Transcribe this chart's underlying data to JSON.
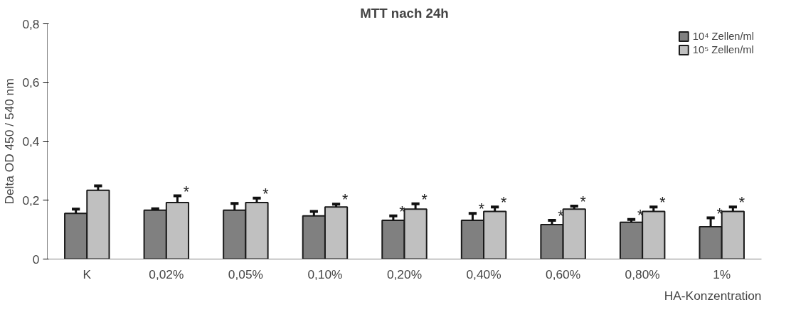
{
  "chart_data": {
    "type": "bar",
    "title": "MTT nach 24h",
    "xlabel": "HA-Konzentration",
    "ylabel": "Delta OD 450 / 540 nm",
    "categories": [
      "K",
      "0,02%",
      "0,05%",
      "0,10%",
      "0,20%",
      "0,40%",
      "0,60%",
      "0,80%",
      "1%"
    ],
    "series": [
      {
        "name": "10⁴ Zellen/ml",
        "color": "#808080",
        "values": [
          0.155,
          0.166,
          0.166,
          0.147,
          0.132,
          0.132,
          0.117,
          0.125,
          0.11
        ],
        "errors": [
          0.015,
          0.005,
          0.023,
          0.015,
          0.015,
          0.023,
          0.015,
          0.01,
          0.03
        ]
      },
      {
        "name": "10⁵ Zellen/ml",
        "color": "#c0c0c0",
        "values": [
          0.234,
          0.192,
          0.192,
          0.177,
          0.17,
          0.162,
          0.17,
          0.162,
          0.162
        ],
        "errors": [
          0.015,
          0.023,
          0.015,
          0.01,
          0.018,
          0.015,
          0.01,
          0.015,
          0.015
        ]
      }
    ],
    "ylim": [
      0,
      0.8
    ],
    "yticks": [
      0,
      {
        "value": 0.2,
        "label": "0,2"
      },
      {
        "value": 0.4,
        "label": "0,4"
      },
      {
        "value": 0.6,
        "label": "0,6"
      },
      {
        "value": 0.8,
        "label": "0,8"
      }
    ],
    "legend": "top right",
    "grid": false,
    "annotations": [
      {
        "text": "*",
        "x": "0,02%",
        "y": 0.192
      },
      {
        "text": "*",
        "x": "0,05%",
        "y": 0.192
      },
      {
        "text": "*",
        "x": "0,10%",
        "y": 0.177
      },
      {
        "text": "*",
        "x": "0,20%",
        "y": 0.132
      },
      {
        "text": "*",
        "x": "0,20%",
        "y": 0.17
      },
      {
        "text": "*",
        "x": "0,40%",
        "y": 0.132
      },
      {
        "text": "*",
        "x": "0,40%",
        "y": 0.162
      },
      {
        "text": "*",
        "x": "0,60%",
        "y": 0.117
      },
      {
        "text": "*",
        "x": "0,60%",
        "y": 0.17
      },
      {
        "text": "*",
        "x": "0,80%",
        "y": 0.125
      },
      {
        "text": "*",
        "x": "0,80%",
        "y": 0.162
      },
      {
        "text": "*",
        "x": "1%",
        "y": 0.11
      },
      {
        "text": "*",
        "x": "1%",
        "y": 0.162
      }
    ]
  }
}
